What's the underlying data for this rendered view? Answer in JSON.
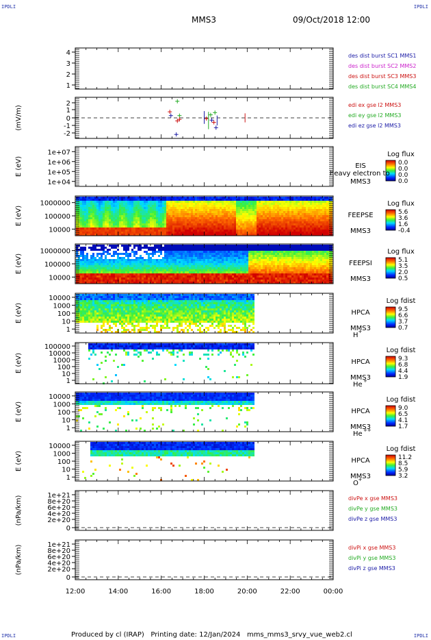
{
  "header": {
    "corner_label": "IPDLI",
    "title": "MMS3",
    "datetime": "09/Oct/2018 12:00"
  },
  "footer": {
    "produced_by": "Produced by cl (IRAP)",
    "printing_date": "Printing date: 12/Jan/2024",
    "filename": "mms_mms3_srvy_vue_web2.cl"
  },
  "colors": {
    "mms1": "#1a1aa6",
    "mms2": "#cc22cc",
    "mms3": "#cc1111",
    "mms4": "#22aa22"
  },
  "chart_data": {
    "type": "heatmap",
    "x_ticks": [
      "12:00",
      "14:00",
      "16:00",
      "18:00",
      "20:00",
      "22:00",
      "00:00"
    ],
    "x_range_hours": [
      12,
      24
    ],
    "panels": [
      {
        "id": "spacecraft",
        "ylabel": "",
        "y_ticks": [
          "4",
          "3",
          "2",
          "1"
        ],
        "legend": [
          {
            "text": "des dist burst SC1 MMS1",
            "color": "#1a1aa6"
          },
          {
            "text": "des dist burst SC2 MMS2",
            "color": "#cc22cc"
          },
          {
            "text": "des dist burst SC3 MMS3",
            "color": "#cc1111"
          },
          {
            "text": "des dist burst SC4 MMS4",
            "color": "#22aa22"
          }
        ]
      },
      {
        "id": "edi",
        "ylabel": "(mV/m)",
        "y_ticks": [
          "2",
          "1",
          "0",
          "-1",
          "-2"
        ],
        "y_range": [
          -2.5,
          2.5
        ],
        "legend": [
          {
            "text": "edi ex gse l2 MMS3",
            "color": "#cc1111"
          },
          {
            "text": "edi ey gse l2 MMS3",
            "color": "#22aa22"
          },
          {
            "text": "edi ez gse l2 MMS3",
            "color": "#1a1aa6"
          }
        ],
        "markers": [
          {
            "t": 16.4,
            "v": 0.8,
            "c": "#cc1111"
          },
          {
            "t": 16.45,
            "v": 0.3,
            "c": "#1a1aa6"
          },
          {
            "t": 16.7,
            "v": -2.2,
            "c": "#1a1aa6"
          },
          {
            "t": 16.75,
            "v": -0.4,
            "c": "#cc1111"
          },
          {
            "t": 16.75,
            "v": 2.2,
            "c": "#22aa22"
          },
          {
            "t": 16.85,
            "v": 0.3,
            "c": "#22aa22"
          },
          {
            "t": 16.85,
            "v": -0.2,
            "c": "#cc1111"
          },
          {
            "t": 18.1,
            "v": -0.1,
            "c": "#cc1111"
          },
          {
            "t": 18.3,
            "v": 0.4,
            "c": "#22aa22"
          },
          {
            "t": 18.35,
            "v": -0.3,
            "c": "#1a1aa6"
          },
          {
            "t": 18.45,
            "v": -0.6,
            "c": "#cc1111"
          },
          {
            "t": 18.5,
            "v": 0.7,
            "c": "#22aa22"
          },
          {
            "t": 18.55,
            "v": -1.3,
            "c": "#1a1aa6"
          }
        ]
      },
      {
        "id": "eis",
        "ylabel": "E (eV)",
        "y_ticks": [
          "1e+07",
          "1e+06",
          "1e+05",
          "1e+04"
        ],
        "label_lines": [
          "EIS",
          "MMS3"
        ],
        "label_extra": "heavy electron to",
        "cbar_title": "Log flux",
        "cbar_ticks": [
          "0.0",
          "0.0",
          "0.0",
          "0.0"
        ]
      },
      {
        "id": "feeps_e",
        "ylabel": "E (eV)",
        "y_ticks": [
          "1000000",
          "100000",
          "10000"
        ],
        "label_lines": [
          "FEEPSE",
          "MMS3"
        ],
        "cbar_title": "Log flux",
        "cbar_ticks": [
          "5.6",
          "3.6",
          "1.6",
          "-0.4"
        ]
      },
      {
        "id": "feeps_i",
        "ylabel": "E (eV)",
        "y_ticks": [
          "1000000",
          "100000",
          "10000"
        ],
        "label_lines": [
          "FEEPSI",
          "MMS3"
        ],
        "cbar_title": "Log flux",
        "cbar_ticks": [
          "5.1",
          "3.5",
          "2.0",
          "0.5"
        ]
      },
      {
        "id": "hpca_h",
        "ylabel": "E (eV)",
        "y_ticks": [
          "10000",
          "1000",
          "100",
          "10",
          "1"
        ],
        "label_lines": [
          "HPCA",
          "MMS3"
        ],
        "species": "H",
        "species_sup": "+",
        "cbar_title": "Log fdist",
        "cbar_ticks": [
          "9.5",
          "6.6",
          "3.7",
          "0.7"
        ]
      },
      {
        "id": "hpca_he",
        "ylabel": "E (eV)",
        "y_ticks": [
          "100000",
          "10000",
          "1000",
          "100",
          "10",
          "1"
        ],
        "label_lines": [
          "HPCA",
          "MMS3"
        ],
        "species": "He",
        "species_sup": "+",
        "cbar_title": "Log fdist",
        "cbar_ticks": [
          "9.3",
          "6.8",
          "4.4",
          "1.9"
        ]
      },
      {
        "id": "hpca_he2",
        "ylabel": "E (eV)",
        "y_ticks": [
          "10000",
          "1000",
          "100",
          "10",
          "1"
        ],
        "label_lines": [
          "HPCA",
          "MMS3"
        ],
        "species": "He",
        "species_sup": "++",
        "cbar_title": "Log fdist",
        "cbar_ticks": [
          "9.0",
          "6.5",
          "4.1",
          "1.7"
        ]
      },
      {
        "id": "hpca_o",
        "ylabel": "E (eV)",
        "y_ticks": [
          "10000",
          "1000",
          "100",
          "10",
          "1"
        ],
        "label_lines": [
          "HPCA",
          "MMS3"
        ],
        "species": "O",
        "species_sup": "+",
        "cbar_title": "Log fdist",
        "cbar_ticks": [
          "11.2",
          "8.5",
          "5.9",
          "3.2"
        ]
      },
      {
        "id": "divpe",
        "ylabel": "(nPa/km)",
        "y_ticks": [
          "1e+21",
          "8e+20",
          "6e+20",
          "4e+20",
          "2e+20",
          "0"
        ],
        "legend": [
          {
            "text": "divPe x gse MMS3",
            "color": "#cc1111"
          },
          {
            "text": "divPe y gse MMS3",
            "color": "#22aa22"
          },
          {
            "text": "divPe z gse MMS3",
            "color": "#1a1aa6"
          }
        ]
      },
      {
        "id": "divpi",
        "ylabel": "(nPa/km)",
        "y_ticks": [
          "1e+21",
          "8e+20",
          "6e+20",
          "4e+20",
          "2e+20",
          "0"
        ],
        "legend": [
          {
            "text": "divPi x gse MMS3",
            "color": "#cc1111"
          },
          {
            "text": "divPi y gse MMS3",
            "color": "#22aa22"
          },
          {
            "text": "divPi z gse MMS3",
            "color": "#1a1aa6"
          }
        ]
      }
    ]
  }
}
